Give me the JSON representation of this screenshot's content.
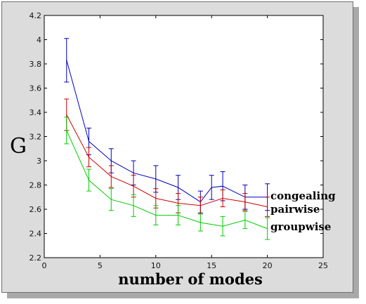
{
  "chart_data": {
    "type": "line",
    "title": "",
    "xlabel": "number of modes",
    "ylabel": "G",
    "xlim": [
      0,
      25
    ],
    "ylim": [
      2.2,
      4.2
    ],
    "x_ticks": [
      0,
      5,
      10,
      15,
      20,
      25
    ],
    "y_ticks": [
      2.2,
      2.4,
      2.6,
      2.8,
      3.0,
      3.2,
      3.4,
      3.6,
      3.8,
      4.0,
      4.2
    ],
    "x_tick_labels": [
      "0",
      "5",
      "10",
      "15",
      "20",
      "25"
    ],
    "y_tick_labels": [
      "2.2",
      "2.4",
      "2.6",
      "2.8",
      "3",
      "3.2",
      "3.4",
      "3.6",
      "3.8",
      "4",
      "4.2"
    ],
    "grid": false,
    "legend_placement": "right of plot, beside line ends",
    "series": [
      {
        "name": "congealing",
        "color": "#0000bb",
        "x": [
          2,
          4,
          6,
          8,
          10,
          12,
          14,
          15,
          16,
          18,
          20
        ],
        "y": [
          3.83,
          3.16,
          3.0,
          2.9,
          2.85,
          2.78,
          2.66,
          2.78,
          2.79,
          2.7,
          2.7
        ],
        "err": [
          0.18,
          0.11,
          0.1,
          0.1,
          0.11,
          0.1,
          0.09,
          0.1,
          0.12,
          0.1,
          0.11
        ]
      },
      {
        "name": "pairwise",
        "color": "#cc0000",
        "x": [
          2,
          4,
          6,
          8,
          10,
          12,
          14,
          16,
          18,
          20
        ],
        "y": [
          3.38,
          3.03,
          2.87,
          2.79,
          2.69,
          2.65,
          2.63,
          2.69,
          2.66,
          2.62
        ],
        "err": [
          0.13,
          0.08,
          0.09,
          0.09,
          0.08,
          0.08,
          0.07,
          0.07,
          0.07,
          0.08
        ]
      },
      {
        "name": "groupwise",
        "color": "#00cc00",
        "x": [
          2,
          4,
          6,
          8,
          10,
          12,
          14,
          16,
          18,
          20
        ],
        "y": [
          3.25,
          2.84,
          2.68,
          2.63,
          2.55,
          2.55,
          2.49,
          2.46,
          2.51,
          2.44
        ],
        "err": [
          0.11,
          0.09,
          0.09,
          0.09,
          0.08,
          0.08,
          0.07,
          0.08,
          0.07,
          0.09
        ]
      }
    ]
  }
}
